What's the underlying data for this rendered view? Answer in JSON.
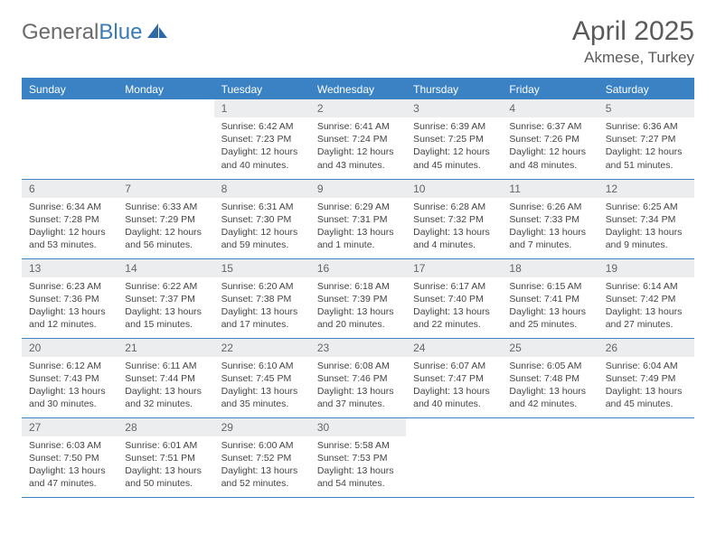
{
  "brand": {
    "name_a": "General",
    "name_b": "Blue"
  },
  "title": "April 2025",
  "location": "Akmese, Turkey",
  "colors": {
    "accent": "#3b82c4",
    "header_bg": "#3b82c4",
    "daynum_bg": "#ecedee",
    "text": "#444444",
    "muted": "#6a6a6a",
    "white": "#ffffff"
  },
  "weekdays": [
    "Sunday",
    "Monday",
    "Tuesday",
    "Wednesday",
    "Thursday",
    "Friday",
    "Saturday"
  ],
  "weeks": [
    [
      null,
      null,
      {
        "n": "1",
        "sr": "Sunrise: 6:42 AM",
        "ss": "Sunset: 7:23 PM",
        "dl": "Daylight: 12 hours and 40 minutes."
      },
      {
        "n": "2",
        "sr": "Sunrise: 6:41 AM",
        "ss": "Sunset: 7:24 PM",
        "dl": "Daylight: 12 hours and 43 minutes."
      },
      {
        "n": "3",
        "sr": "Sunrise: 6:39 AM",
        "ss": "Sunset: 7:25 PM",
        "dl": "Daylight: 12 hours and 45 minutes."
      },
      {
        "n": "4",
        "sr": "Sunrise: 6:37 AM",
        "ss": "Sunset: 7:26 PM",
        "dl": "Daylight: 12 hours and 48 minutes."
      },
      {
        "n": "5",
        "sr": "Sunrise: 6:36 AM",
        "ss": "Sunset: 7:27 PM",
        "dl": "Daylight: 12 hours and 51 minutes."
      }
    ],
    [
      {
        "n": "6",
        "sr": "Sunrise: 6:34 AM",
        "ss": "Sunset: 7:28 PM",
        "dl": "Daylight: 12 hours and 53 minutes."
      },
      {
        "n": "7",
        "sr": "Sunrise: 6:33 AM",
        "ss": "Sunset: 7:29 PM",
        "dl": "Daylight: 12 hours and 56 minutes."
      },
      {
        "n": "8",
        "sr": "Sunrise: 6:31 AM",
        "ss": "Sunset: 7:30 PM",
        "dl": "Daylight: 12 hours and 59 minutes."
      },
      {
        "n": "9",
        "sr": "Sunrise: 6:29 AM",
        "ss": "Sunset: 7:31 PM",
        "dl": "Daylight: 13 hours and 1 minute."
      },
      {
        "n": "10",
        "sr": "Sunrise: 6:28 AM",
        "ss": "Sunset: 7:32 PM",
        "dl": "Daylight: 13 hours and 4 minutes."
      },
      {
        "n": "11",
        "sr": "Sunrise: 6:26 AM",
        "ss": "Sunset: 7:33 PM",
        "dl": "Daylight: 13 hours and 7 minutes."
      },
      {
        "n": "12",
        "sr": "Sunrise: 6:25 AM",
        "ss": "Sunset: 7:34 PM",
        "dl": "Daylight: 13 hours and 9 minutes."
      }
    ],
    [
      {
        "n": "13",
        "sr": "Sunrise: 6:23 AM",
        "ss": "Sunset: 7:36 PM",
        "dl": "Daylight: 13 hours and 12 minutes."
      },
      {
        "n": "14",
        "sr": "Sunrise: 6:22 AM",
        "ss": "Sunset: 7:37 PM",
        "dl": "Daylight: 13 hours and 15 minutes."
      },
      {
        "n": "15",
        "sr": "Sunrise: 6:20 AM",
        "ss": "Sunset: 7:38 PM",
        "dl": "Daylight: 13 hours and 17 minutes."
      },
      {
        "n": "16",
        "sr": "Sunrise: 6:18 AM",
        "ss": "Sunset: 7:39 PM",
        "dl": "Daylight: 13 hours and 20 minutes."
      },
      {
        "n": "17",
        "sr": "Sunrise: 6:17 AM",
        "ss": "Sunset: 7:40 PM",
        "dl": "Daylight: 13 hours and 22 minutes."
      },
      {
        "n": "18",
        "sr": "Sunrise: 6:15 AM",
        "ss": "Sunset: 7:41 PM",
        "dl": "Daylight: 13 hours and 25 minutes."
      },
      {
        "n": "19",
        "sr": "Sunrise: 6:14 AM",
        "ss": "Sunset: 7:42 PM",
        "dl": "Daylight: 13 hours and 27 minutes."
      }
    ],
    [
      {
        "n": "20",
        "sr": "Sunrise: 6:12 AM",
        "ss": "Sunset: 7:43 PM",
        "dl": "Daylight: 13 hours and 30 minutes."
      },
      {
        "n": "21",
        "sr": "Sunrise: 6:11 AM",
        "ss": "Sunset: 7:44 PM",
        "dl": "Daylight: 13 hours and 32 minutes."
      },
      {
        "n": "22",
        "sr": "Sunrise: 6:10 AM",
        "ss": "Sunset: 7:45 PM",
        "dl": "Daylight: 13 hours and 35 minutes."
      },
      {
        "n": "23",
        "sr": "Sunrise: 6:08 AM",
        "ss": "Sunset: 7:46 PM",
        "dl": "Daylight: 13 hours and 37 minutes."
      },
      {
        "n": "24",
        "sr": "Sunrise: 6:07 AM",
        "ss": "Sunset: 7:47 PM",
        "dl": "Daylight: 13 hours and 40 minutes."
      },
      {
        "n": "25",
        "sr": "Sunrise: 6:05 AM",
        "ss": "Sunset: 7:48 PM",
        "dl": "Daylight: 13 hours and 42 minutes."
      },
      {
        "n": "26",
        "sr": "Sunrise: 6:04 AM",
        "ss": "Sunset: 7:49 PM",
        "dl": "Daylight: 13 hours and 45 minutes."
      }
    ],
    [
      {
        "n": "27",
        "sr": "Sunrise: 6:03 AM",
        "ss": "Sunset: 7:50 PM",
        "dl": "Daylight: 13 hours and 47 minutes."
      },
      {
        "n": "28",
        "sr": "Sunrise: 6:01 AM",
        "ss": "Sunset: 7:51 PM",
        "dl": "Daylight: 13 hours and 50 minutes."
      },
      {
        "n": "29",
        "sr": "Sunrise: 6:00 AM",
        "ss": "Sunset: 7:52 PM",
        "dl": "Daylight: 13 hours and 52 minutes."
      },
      {
        "n": "30",
        "sr": "Sunrise: 5:58 AM",
        "ss": "Sunset: 7:53 PM",
        "dl": "Daylight: 13 hours and 54 minutes."
      },
      null,
      null,
      null
    ]
  ]
}
